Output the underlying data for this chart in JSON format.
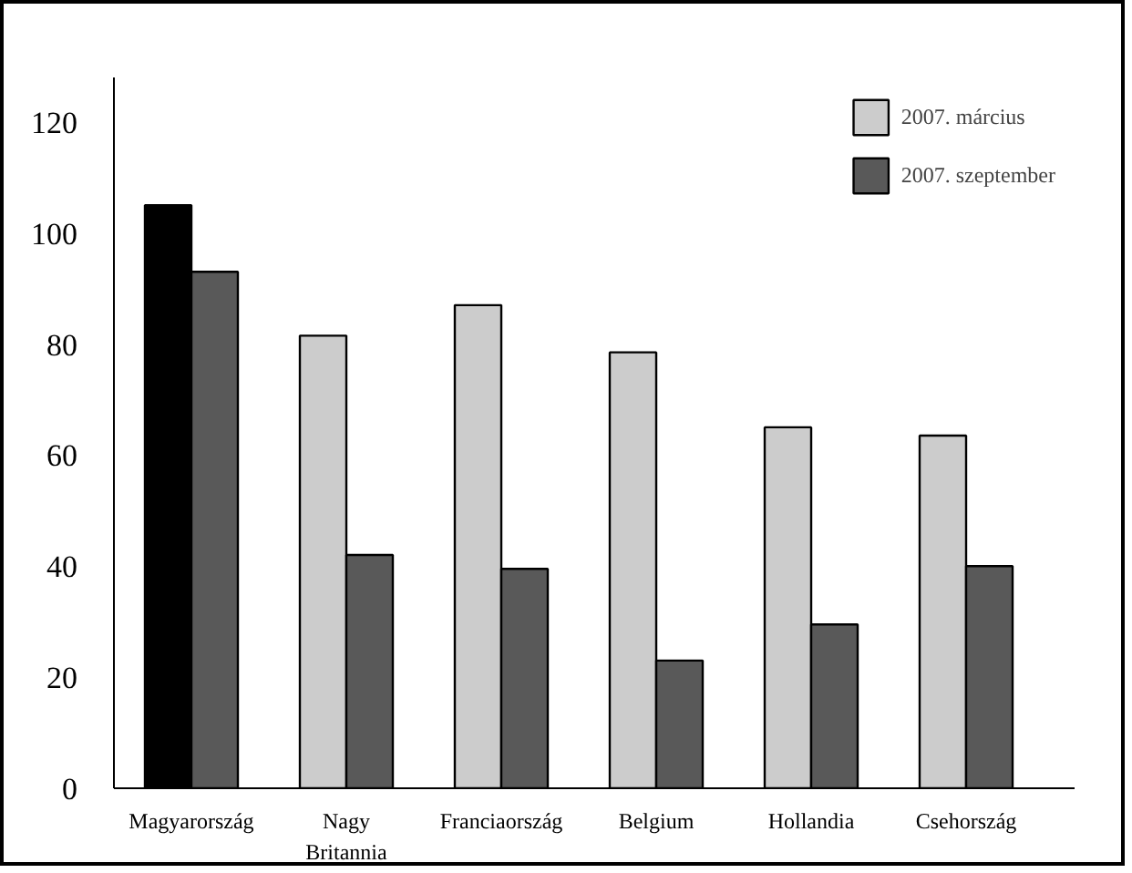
{
  "chart_data": {
    "type": "bar",
    "categories": [
      "Magyarország",
      "Nagy Britannia",
      "Franciaország",
      "Belgium",
      "Hollandia",
      "Csehország"
    ],
    "series": [
      {
        "name": "2007. március",
        "color": "#cccccc",
        "colors": [
          "#000000",
          "#cccccc",
          "#cccccc",
          "#cccccc",
          "#cccccc",
          "#cccccc"
        ],
        "values": [
          105,
          81.5,
          87,
          78.5,
          65,
          63.5
        ]
      },
      {
        "name": "2007. szeptember",
        "color": "#595959",
        "values": [
          93,
          42,
          39.5,
          23,
          29.5,
          40
        ]
      }
    ],
    "ylim": [
      0,
      128
    ],
    "yticks": [
      0,
      20,
      40,
      60,
      80,
      100,
      120
    ],
    "grid": false,
    "legend": "top right"
  }
}
